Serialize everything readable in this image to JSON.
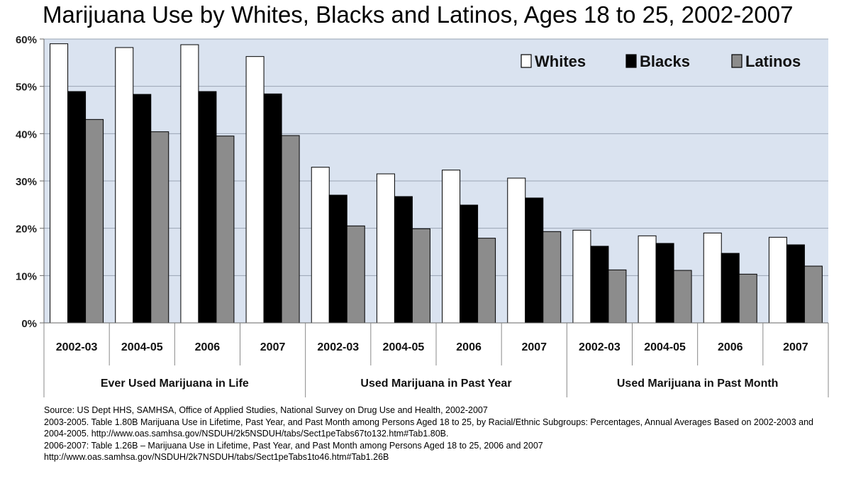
{
  "title": "Marijuana Use by Whites, Blacks and Latinos, Ages 18 to 25, 2002-2007",
  "colors": {
    "plot_background": "#dae3f0",
    "gridline": "#9aa5b5",
    "Whites": "#ffffff",
    "Blacks": "#000000",
    "Latinos": "#8c8c8c"
  },
  "chart_data": {
    "type": "bar",
    "title": "Marijuana Use by Whites, Blacks and Latinos, Ages 18 to 25, 2002-2007",
    "xlabel": "",
    "ylabel": "",
    "ylim": [
      0,
      60
    ],
    "yticks": [
      0,
      10,
      20,
      30,
      40,
      50,
      60
    ],
    "ytick_labels": [
      "0%",
      "10%",
      "20%",
      "30%",
      "40%",
      "50%",
      "60%"
    ],
    "grid": true,
    "legend_position": "top-right",
    "groups": [
      "Ever Used Marijuana in Life",
      "Used Marijuana in Past Year",
      "Used Marijuana in Past Month"
    ],
    "categories": [
      "2002-03",
      "2004-05",
      "2006",
      "2007",
      "2002-03",
      "2004-05",
      "2006",
      "2007",
      "2002-03",
      "2004-05",
      "2006",
      "2007"
    ],
    "series": [
      {
        "name": "Whites",
        "values": [
          59.0,
          58.2,
          58.8,
          56.3,
          32.9,
          31.5,
          32.3,
          30.6,
          19.6,
          18.4,
          19.0,
          18.1
        ]
      },
      {
        "name": "Blacks",
        "values": [
          48.9,
          48.3,
          48.9,
          48.4,
          27.0,
          26.7,
          24.9,
          26.4,
          16.2,
          16.8,
          14.7,
          16.5
        ]
      },
      {
        "name": "Latinos",
        "values": [
          43.0,
          40.4,
          39.5,
          39.6,
          20.5,
          19.9,
          17.9,
          19.3,
          11.2,
          11.1,
          10.3,
          12.0
        ]
      }
    ]
  },
  "source": {
    "line1": "Source: US Dept HHS, SAMHSA, Office of Applied Studies, National Survey on Drug Use and Health, 2002-2007",
    "line2": "2003-2005. Table  1.80B Marijuana Use in Lifetime, Past Year, and Past Month among Persons Aged 18 to 25, by Racial/Ethnic Subgroups: Percentages, Annual Averages Based on 2002-2003 and 2004-2005. http://www.oas.samhsa.gov/NSDUH/2k5NSDUH/tabs/Sect1peTabs67to132.htm#Tab1.80B.",
    "line3": "2006-2007:  Table 1.26B – Marijuana Use in Lifetime, Past Year, and Past Month among Persons Aged 18 to 25, 2006 and 2007",
    "line4": "http://www.oas.samhsa.gov/NSDUH/2k7NSDUH/tabs/Sect1peTabs1to46.htm#Tab1.26B"
  }
}
